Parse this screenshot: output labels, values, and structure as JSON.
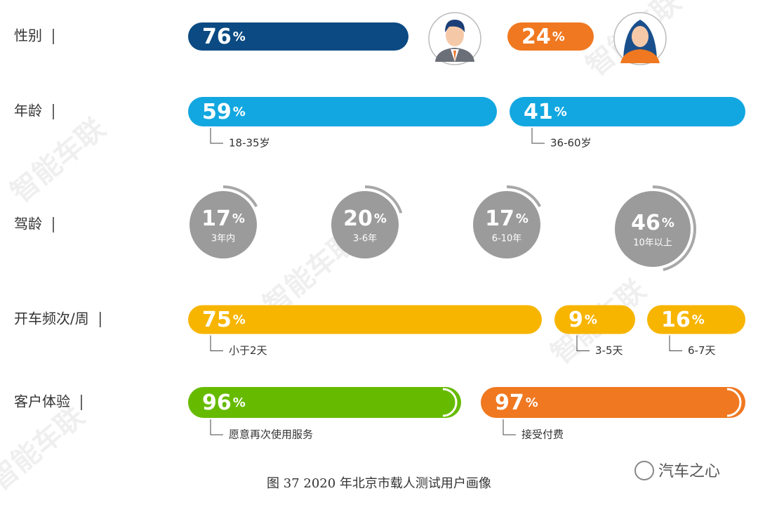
{
  "rows": [
    {
      "label": "性别",
      "items": [
        {
          "value": 76,
          "unit": "%"
        },
        {
          "value": 24,
          "unit": "%"
        }
      ]
    },
    {
      "label": "年龄",
      "items": [
        {
          "value": 59,
          "unit": "%",
          "caption": "18-35岁"
        },
        {
          "value": 41,
          "unit": "%",
          "caption": "36-60岁"
        }
      ]
    },
    {
      "label": "驾龄",
      "items": [
        {
          "value": 17,
          "unit": "%",
          "caption": "3年内"
        },
        {
          "value": 20,
          "unit": "%",
          "caption": "3-6年"
        },
        {
          "value": 17,
          "unit": "%",
          "caption": "6-10年"
        },
        {
          "value": 46,
          "unit": "%",
          "caption": "10年以上"
        }
      ]
    },
    {
      "label": "开车频次/周",
      "items": [
        {
          "value": 75,
          "unit": "%",
          "caption": "小于2天"
        },
        {
          "value": 9,
          "unit": "%",
          "caption": "3-5天"
        },
        {
          "value": 16,
          "unit": "%",
          "caption": "6-7天"
        }
      ]
    },
    {
      "label": "客户体验",
      "items": [
        {
          "value": 96,
          "unit": "%",
          "caption": "愿意再次使用服务"
        },
        {
          "value": 97,
          "unit": "%",
          "caption": "接受付费"
        }
      ]
    }
  ],
  "caption": "图 37  2020 年北京市载人测试用户画像",
  "brand": "汽车之心",
  "watermark": "智能车联"
}
